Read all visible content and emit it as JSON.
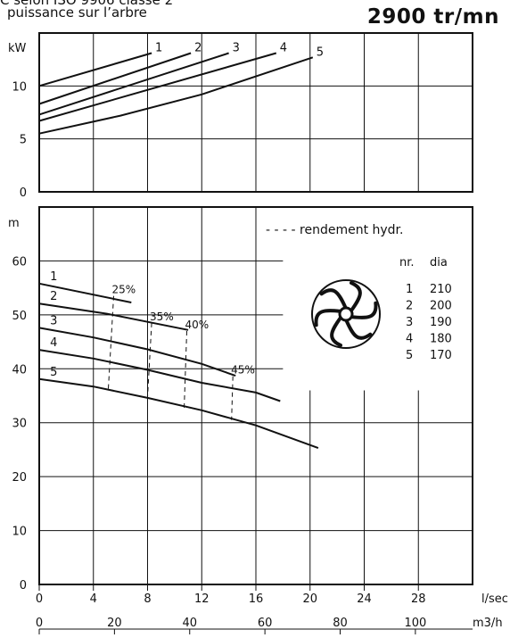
{
  "header": {
    "line1": "C selon ISO 9906 classe 2",
    "line2": "puissance sur l’arbre",
    "speed": "2900  tr/mn"
  },
  "legend": {
    "efficiency_label": "- - - - rendement hydr.",
    "col_nr": "nr.",
    "col_dia": "dia",
    "rows": [
      {
        "nr": "1",
        "dia": "210"
      },
      {
        "nr": "2",
        "dia": "200"
      },
      {
        "nr": "3",
        "dia": "190"
      },
      {
        "nr": "4",
        "dia": "180"
      },
      {
        "nr": "5",
        "dia": "170"
      }
    ],
    "impeller_icon": "impeller-icon"
  },
  "chart_data": [
    {
      "type": "line",
      "ylabel": "kW",
      "xlim": [
        0,
        32
      ],
      "ylim": [
        0,
        15
      ],
      "yticks": [
        "0",
        "5",
        "10"
      ],
      "grid": true,
      "series": [
        {
          "name": "1",
          "x": [
            0,
            8.3
          ],
          "y": [
            10.0,
            13.1
          ]
        },
        {
          "name": "2",
          "x": [
            0,
            11.2
          ],
          "y": [
            8.3,
            13.1
          ]
        },
        {
          "name": "3",
          "x": [
            0,
            14.0
          ],
          "y": [
            7.3,
            13.1
          ]
        },
        {
          "name": "4",
          "x": [
            0,
            17.5
          ],
          "y": [
            6.7,
            13.1
          ]
        },
        {
          "name": "5",
          "x": [
            0,
            6,
            12,
            20.2
          ],
          "y": [
            5.5,
            7.2,
            9.2,
            12.7
          ]
        }
      ]
    },
    {
      "type": "line",
      "ylabel": "m",
      "xlabel": "l/sec",
      "xlabel2": "m3/h",
      "xlim": [
        0,
        32
      ],
      "ylim": [
        0,
        70
      ],
      "xticks": [
        "0",
        "4",
        "8",
        "12",
        "16",
        "20",
        "24",
        "28"
      ],
      "xticks2": [
        "0",
        "20",
        "40",
        "60",
        "80",
        "100"
      ],
      "yticks": [
        "0",
        "10",
        "20",
        "30",
        "40",
        "50",
        "60"
      ],
      "grid": true,
      "series": [
        {
          "name": "1",
          "x": [
            0,
            6.8
          ],
          "y": [
            55.8,
            52.3
          ]
        },
        {
          "name": "2",
          "x": [
            0,
            5,
            11
          ],
          "y": [
            52.1,
            50.2,
            47.2
          ]
        },
        {
          "name": "3",
          "x": [
            0,
            4,
            8,
            12,
            14.5
          ],
          "y": [
            47.6,
            45.8,
            43.6,
            40.9,
            38.7
          ]
        },
        {
          "name": "4",
          "x": [
            0,
            4,
            8,
            12,
            16,
            17.8
          ],
          "y": [
            43.5,
            41.9,
            39.8,
            37.4,
            35.6,
            34.0
          ]
        },
        {
          "name": "5",
          "x": [
            0,
            4,
            8,
            12,
            16,
            20.6
          ],
          "y": [
            38.1,
            36.7,
            34.6,
            32.3,
            29.5,
            25.3
          ]
        }
      ],
      "efficiency_lines": [
        {
          "label": "25%",
          "x": [
            5.5,
            5.1
          ],
          "y": [
            53.5,
            36.3
          ]
        },
        {
          "label": "35%",
          "x": [
            8.3,
            8.0
          ],
          "y": [
            48.5,
            34.8
          ]
        },
        {
          "label": "40%",
          "x": [
            10.9,
            10.7
          ],
          "y": [
            47.0,
            32.5
          ]
        },
        {
          "label": "45%",
          "x": [
            14.3,
            14.2
          ],
          "y": [
            38.6,
            30.5
          ]
        }
      ]
    }
  ]
}
